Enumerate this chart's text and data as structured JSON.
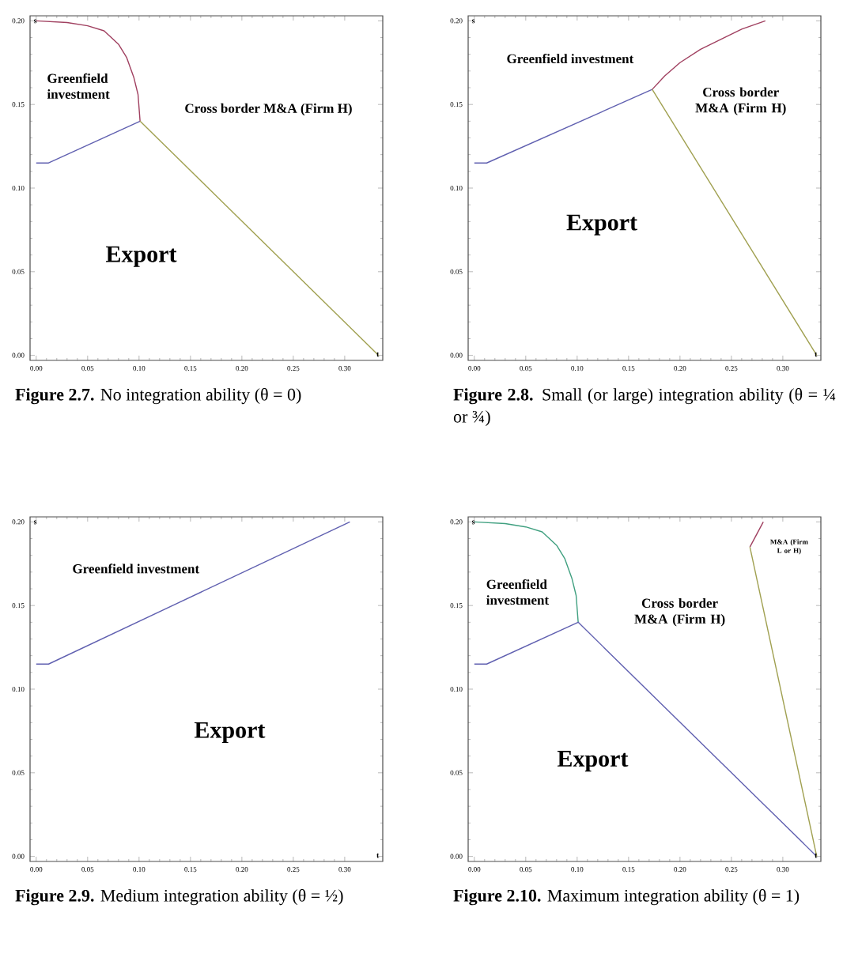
{
  "chart_data": [
    {
      "type": "line",
      "title": "**Figure 2.7.** No integration ability (θ = 0)",
      "xlim": [
        -0.006,
        0.337
      ],
      "ylim": [
        -0.003,
        0.203
      ],
      "xticks": [
        {
          "value": 0,
          "label": "0.00"
        },
        {
          "value": 0.05,
          "label": "0.05"
        },
        {
          "value": 0.1,
          "label": "0.10"
        },
        {
          "value": 0.15,
          "label": "0.15"
        },
        {
          "value": 0.2,
          "label": "0.20"
        },
        {
          "value": 0.25,
          "label": "0.25"
        },
        {
          "value": 0.3,
          "label": "0.30"
        }
      ],
      "yticks": [
        {
          "value": 0,
          "label": "0.00"
        },
        {
          "value": 0.05,
          "label": "0.05"
        },
        {
          "value": 0.1,
          "label": "0.10"
        },
        {
          "value": 0.15,
          "label": "0.15"
        },
        {
          "value": 0.2,
          "label": "0.20"
        }
      ],
      "series": [
        {
          "color": "#6060b0",
          "x": [
            0,
            0.012,
            0.101
          ],
          "values": [
            0.115,
            0.115,
            0.14
          ]
        },
        {
          "color": "#a04060",
          "x": [
            0,
            0.03,
            0.05,
            0.066,
            0.08,
            0.088,
            0.095,
            0.099,
            0.101
          ],
          "values": [
            0.2,
            0.199,
            0.197,
            0.194,
            0.186,
            0.178,
            0.166,
            0.156,
            0.14
          ]
        },
        {
          "color": "#a0a050",
          "x": [
            0.101,
            0.333
          ],
          "values": [
            0.14,
            0
          ]
        }
      ],
      "annotations": [
        "s",
        "t",
        "Greenfield investment",
        "Cross border M&A (Firm H)",
        "Export"
      ]
    },
    {
      "type": "line",
      "title": "**Figure 2.8.** Small (or large) integration ability (θ = ¼ or ¾)",
      "xlim": [
        -0.006,
        0.337
      ],
      "ylim": [
        -0.003,
        0.203
      ],
      "xticks": [
        {
          "value": 0,
          "label": "0.00"
        },
        {
          "value": 0.05,
          "label": "0.05"
        },
        {
          "value": 0.1,
          "label": "0.10"
        },
        {
          "value": 0.15,
          "label": "0.15"
        },
        {
          "value": 0.2,
          "label": "0.20"
        },
        {
          "value": 0.25,
          "label": "0.25"
        },
        {
          "value": 0.3,
          "label": "0.30"
        }
      ],
      "yticks": [
        {
          "value": 0,
          "label": "0.00"
        },
        {
          "value": 0.05,
          "label": "0.05"
        },
        {
          "value": 0.1,
          "label": "0.10"
        },
        {
          "value": 0.15,
          "label": "0.15"
        },
        {
          "value": 0.2,
          "label": "0.20"
        }
      ],
      "series": [
        {
          "color": "#6060b0",
          "x": [
            0,
            0.012,
            0.173
          ],
          "values": [
            0.115,
            0.115,
            0.159
          ]
        },
        {
          "color": "#a04060",
          "x": [
            0.173,
            0.185,
            0.2,
            0.22,
            0.24,
            0.26,
            0.283
          ],
          "values": [
            0.159,
            0.167,
            0.175,
            0.183,
            0.189,
            0.195,
            0.2
          ]
        },
        {
          "color": "#a0a050",
          "x": [
            0.173,
            0.333
          ],
          "values": [
            0.159,
            0
          ]
        }
      ],
      "annotations": [
        "s",
        "t",
        "Greenfield investment",
        "Cross border M&A (Firm H)",
        "Export"
      ]
    },
    {
      "type": "line",
      "title": "**Figure 2.9.** Medium integration ability (θ = ½)",
      "xlim": [
        -0.006,
        0.337
      ],
      "ylim": [
        -0.003,
        0.203
      ],
      "xticks": [
        {
          "value": 0,
          "label": "0.00"
        },
        {
          "value": 0.05,
          "label": "0.05"
        },
        {
          "value": 0.1,
          "label": "0.10"
        },
        {
          "value": 0.15,
          "label": "0.15"
        },
        {
          "value": 0.2,
          "label": "0.20"
        },
        {
          "value": 0.25,
          "label": "0.25"
        },
        {
          "value": 0.3,
          "label": "0.30"
        }
      ],
      "yticks": [
        {
          "value": 0,
          "label": "0.00"
        },
        {
          "value": 0.05,
          "label": "0.05"
        },
        {
          "value": 0.1,
          "label": "0.10"
        },
        {
          "value": 0.15,
          "label": "0.15"
        },
        {
          "value": 0.2,
          "label": "0.20"
        }
      ],
      "series": [
        {
          "color": "#6060b0",
          "x": [
            0,
            0.012,
            0.305
          ],
          "values": [
            0.115,
            0.115,
            0.2
          ]
        }
      ],
      "annotations": [
        "s",
        "t",
        "Greenfield investment",
        "Export"
      ]
    },
    {
      "type": "line",
      "title": "**Figure 2.10.** Maximum integration ability (θ = 1)",
      "xlim": [
        -0.006,
        0.337
      ],
      "ylim": [
        -0.003,
        0.203
      ],
      "xticks": [
        {
          "value": 0,
          "label": "0.00"
        },
        {
          "value": 0.05,
          "label": "0.05"
        },
        {
          "value": 0.1,
          "label": "0.10"
        },
        {
          "value": 0.15,
          "label": "0.15"
        },
        {
          "value": 0.2,
          "label": "0.20"
        },
        {
          "value": 0.25,
          "label": "0.25"
        },
        {
          "value": 0.3,
          "label": "0.30"
        }
      ],
      "yticks": [
        {
          "value": 0,
          "label": "0.00"
        },
        {
          "value": 0.05,
          "label": "0.05"
        },
        {
          "value": 0.1,
          "label": "0.10"
        },
        {
          "value": 0.15,
          "label": "0.15"
        },
        {
          "value": 0.2,
          "label": "0.20"
        }
      ],
      "series": [
        {
          "color": "#40a080",
          "x": [
            0,
            0.03,
            0.05,
            0.066,
            0.08,
            0.088,
            0.095,
            0.099,
            0.101
          ],
          "values": [
            0.2,
            0.199,
            0.197,
            0.194,
            0.186,
            0.178,
            0.166,
            0.156,
            0.14
          ]
        },
        {
          "color": "#6060b0",
          "x": [
            0,
            0.012,
            0.101,
            0.333
          ],
          "values": [
            0.115,
            0.115,
            0.14,
            0
          ]
        },
        {
          "color": "#a04060",
          "x": [
            0.268,
            0.281
          ],
          "values": [
            0.185,
            0.2
          ]
        },
        {
          "color": "#a0a050",
          "x": [
            0.268,
            0.333
          ],
          "values": [
            0.185,
            0
          ]
        }
      ],
      "annotations": [
        "s",
        "t",
        "Greenfield investment",
        "Cross border M&A (Firm H)",
        "Export",
        "M&A (Firm L or H)"
      ]
    }
  ]
}
